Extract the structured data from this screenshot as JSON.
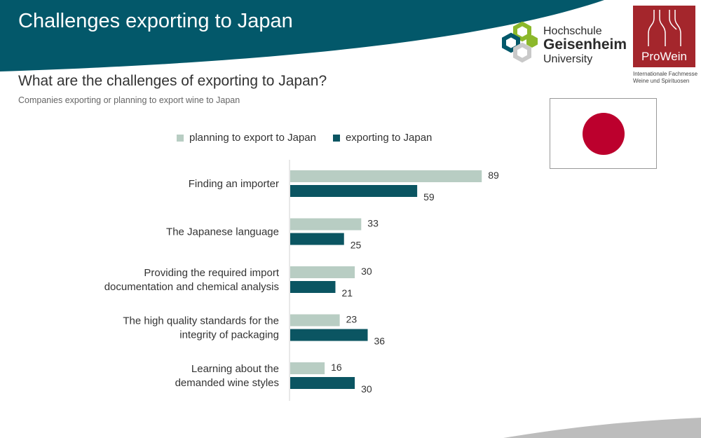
{
  "slide": {
    "title": "Challenges exporting to Japan",
    "question": "What are the challenges of exporting to Japan?",
    "subtitle": "Companies exporting or planning to export wine to Japan"
  },
  "logos": {
    "hgu": {
      "line1": "Hochschule",
      "line2": "Geisenheim",
      "line3": "University"
    },
    "prowein": {
      "name": "ProWein",
      "tagline_1": "Internationale Fachmesse",
      "tagline_2": "Weine und Spirituosen"
    }
  },
  "flag": {
    "country": "Japan"
  },
  "colors": {
    "banner": "#03586a",
    "planning": "#b8cdc3",
    "exporting": "#0b5562",
    "prowein_red": "#a4262c",
    "flag_red": "#bc002d"
  },
  "chart_data": {
    "type": "bar",
    "orientation": "horizontal",
    "title": "",
    "xlabel": "",
    "ylabel": "",
    "categories": [
      [
        "Finding an importer"
      ],
      [
        "The Japanese language"
      ],
      [
        "Providing the required import",
        "documentation and chemical analysis"
      ],
      [
        "The high quality standards for the",
        "integrity of packaging"
      ],
      [
        "Learning about the",
        "demanded wine styles"
      ]
    ],
    "series": [
      {
        "name": "planning to export to Japan",
        "color": "#b8cdc3",
        "values": [
          89,
          33,
          30,
          23,
          16
        ]
      },
      {
        "name": "exporting to Japan",
        "color": "#0b5562",
        "values": [
          59,
          25,
          21,
          36,
          30
        ]
      }
    ],
    "xlim": [
      0,
      100
    ],
    "grid": false,
    "legend": "top"
  }
}
